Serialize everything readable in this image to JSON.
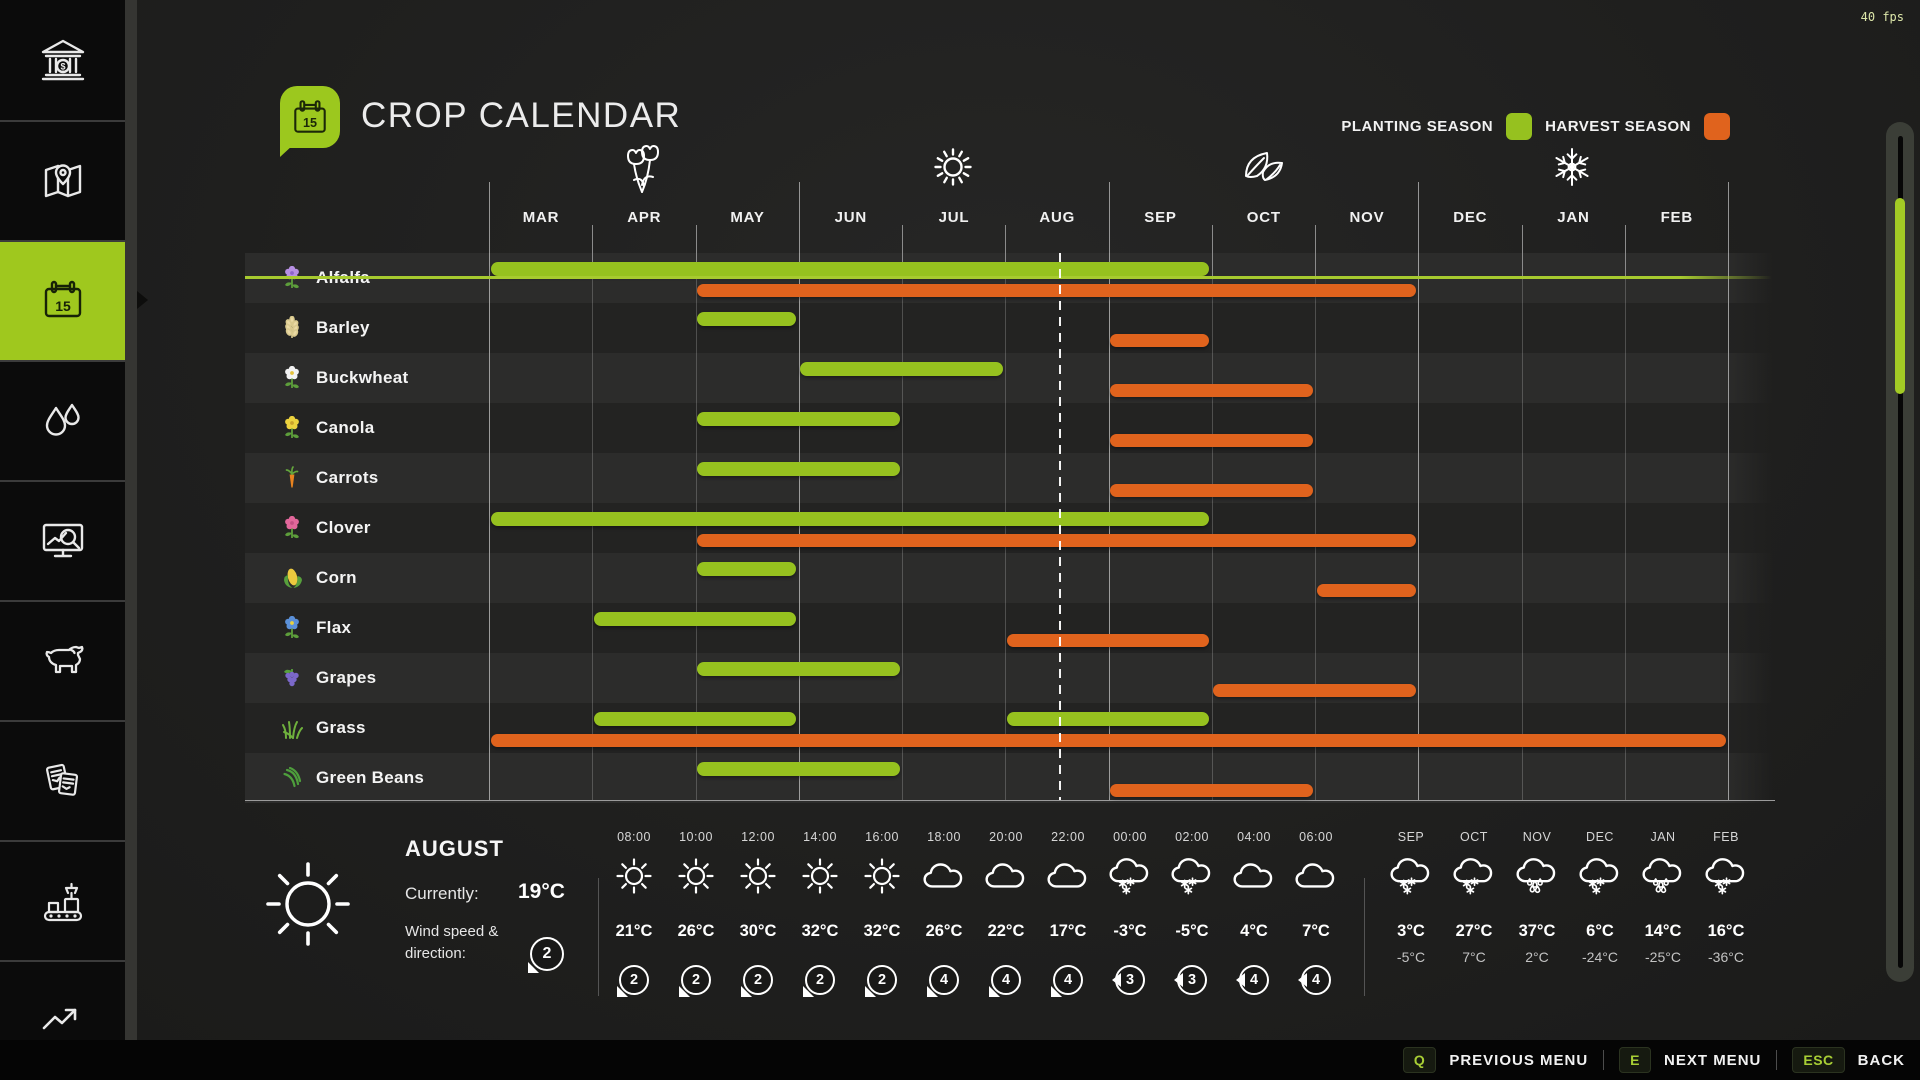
{
  "fps": "40 fps",
  "header": {
    "title": "CROP CALENDAR",
    "icon_day": "15"
  },
  "legend": {
    "planting_label": "PLANTING SEASON",
    "harvest_label": "HARVEST SEASON",
    "planting_color": "#96c11f",
    "harvest_color": "#e0631d",
    "accent_green": "#9fc81e"
  },
  "sidebar": {
    "items": [
      {
        "id": "finances",
        "icon": "bank-icon",
        "selected": false
      },
      {
        "id": "map",
        "icon": "map-icon",
        "selected": false
      },
      {
        "id": "calendar",
        "icon": "calendar-icon",
        "selected": true
      },
      {
        "id": "water",
        "icon": "drops-icon",
        "selected": false
      },
      {
        "id": "prices",
        "icon": "monitor-icon",
        "selected": false
      },
      {
        "id": "animals",
        "icon": "cow-icon",
        "selected": false
      },
      {
        "id": "contracts",
        "icon": "documents-icon",
        "selected": false
      },
      {
        "id": "production",
        "icon": "production-icon",
        "selected": false
      },
      {
        "id": "statistics",
        "icon": "stats-icon",
        "selected": false
      }
    ],
    "calendar_icon_day": "15"
  },
  "calendar": {
    "months": [
      "MAR",
      "APR",
      "MAY",
      "JUN",
      "JUL",
      "AUG",
      "SEP",
      "OCT",
      "NOV",
      "DEC",
      "JAN",
      "FEB"
    ],
    "season_icons": [
      "flowers-icon",
      "sun-icon",
      "leaves-icon",
      "snowflake-icon"
    ],
    "current_marker": {
      "month": "AUG",
      "fraction": 0.52
    },
    "crops": [
      {
        "name": "Alfalfa",
        "icon": "alfalfa",
        "plant": [
          [
            0,
            6
          ]
        ],
        "harvest": [
          [
            2,
            8
          ]
        ]
      },
      {
        "name": "Barley",
        "icon": "barley",
        "plant": [
          [
            2,
            2
          ]
        ],
        "harvest": [
          [
            6,
            6
          ]
        ]
      },
      {
        "name": "Buckwheat",
        "icon": "buckwheat",
        "plant": [
          [
            3,
            4
          ]
        ],
        "harvest": [
          [
            6,
            7
          ]
        ]
      },
      {
        "name": "Canola",
        "icon": "canola",
        "plant": [
          [
            2,
            3
          ]
        ],
        "harvest": [
          [
            6,
            7
          ]
        ]
      },
      {
        "name": "Carrots",
        "icon": "carrots",
        "plant": [
          [
            2,
            3
          ]
        ],
        "harvest": [
          [
            6,
            7
          ]
        ]
      },
      {
        "name": "Clover",
        "icon": "clover",
        "plant": [
          [
            0,
            6
          ]
        ],
        "harvest": [
          [
            2,
            8
          ]
        ]
      },
      {
        "name": "Corn",
        "icon": "corn",
        "plant": [
          [
            2,
            2
          ]
        ],
        "harvest": [
          [
            8,
            8
          ]
        ]
      },
      {
        "name": "Flax",
        "icon": "flax",
        "plant": [
          [
            1,
            2
          ]
        ],
        "harvest": [
          [
            5,
            6
          ]
        ]
      },
      {
        "name": "Grapes",
        "icon": "grapes",
        "plant": [
          [
            2,
            3
          ]
        ],
        "harvest": [
          [
            7,
            8
          ]
        ]
      },
      {
        "name": "Grass",
        "icon": "grass",
        "plant": [
          [
            1,
            2
          ],
          [
            5,
            6
          ]
        ],
        "harvest": [
          [
            0,
            11
          ]
        ]
      },
      {
        "name": "Green Beans",
        "icon": "beans",
        "plant": [
          [
            2,
            3
          ]
        ],
        "harvest": [
          [
            6,
            7
          ]
        ]
      }
    ]
  },
  "weather": {
    "current": {
      "month": "AUGUST",
      "currently_label": "Currently:",
      "temp": "19°C",
      "wind_line1": "Wind speed &",
      "wind_line2": "direction:",
      "wind_value": "2",
      "wind_dir": "sw",
      "icon": "sun"
    },
    "hourly": [
      {
        "time": "08:00",
        "icon": "sun",
        "temp": "21°C",
        "wind": "2",
        "wind_dir": "sw"
      },
      {
        "time": "10:00",
        "icon": "sun",
        "temp": "26°C",
        "wind": "2",
        "wind_dir": "sw"
      },
      {
        "time": "12:00",
        "icon": "sun",
        "temp": "30°C",
        "wind": "2",
        "wind_dir": "sw"
      },
      {
        "time": "14:00",
        "icon": "sun",
        "temp": "32°C",
        "wind": "2",
        "wind_dir": "sw"
      },
      {
        "time": "16:00",
        "icon": "sun",
        "temp": "32°C",
        "wind": "2",
        "wind_dir": "sw"
      },
      {
        "time": "18:00",
        "icon": "cloud",
        "temp": "26°C",
        "wind": "4",
        "wind_dir": "sw"
      },
      {
        "time": "20:00",
        "icon": "cloud",
        "temp": "22°C",
        "wind": "4",
        "wind_dir": "sw"
      },
      {
        "time": "22:00",
        "icon": "cloud",
        "temp": "17°C",
        "wind": "4",
        "wind_dir": "sw"
      },
      {
        "time": "00:00",
        "icon": "snow",
        "temp": "-3°C",
        "wind": "3",
        "wind_dir": "w"
      },
      {
        "time": "02:00",
        "icon": "snow",
        "temp": "-5°C",
        "wind": "3",
        "wind_dir": "w"
      },
      {
        "time": "04:00",
        "icon": "cloud",
        "temp": "4°C",
        "wind": "4",
        "wind_dir": "w"
      },
      {
        "time": "06:00",
        "icon": "cloud",
        "temp": "7°C",
        "wind": "4",
        "wind_dir": "w"
      }
    ],
    "monthly": [
      {
        "month": "SEP",
        "icon": "snow",
        "high": "3°C",
        "low": "-5°C"
      },
      {
        "month": "OCT",
        "icon": "snow",
        "high": "27°C",
        "low": "7°C"
      },
      {
        "month": "NOV",
        "icon": "rain",
        "high": "37°C",
        "low": "2°C"
      },
      {
        "month": "DEC",
        "icon": "snow",
        "high": "6°C",
        "low": "-24°C"
      },
      {
        "month": "JAN",
        "icon": "rain",
        "high": "14°C",
        "low": "-25°C"
      },
      {
        "month": "FEB",
        "icon": "snow",
        "high": "16°C",
        "low": "-36°C"
      }
    ]
  },
  "menu_bar": {
    "items": [
      {
        "key": "Q",
        "label": "PREVIOUS MENU"
      },
      {
        "key": "E",
        "label": "NEXT MENU"
      },
      {
        "key": "ESC",
        "label": "BACK"
      }
    ]
  }
}
